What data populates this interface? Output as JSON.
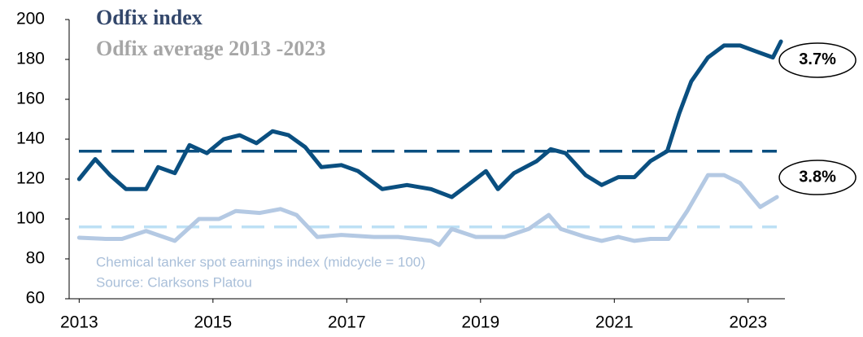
{
  "chart_data": {
    "type": "line",
    "title": "Odfix index",
    "subtitle": "Odfix average 2013 -2023",
    "notes": [
      "Chemical tanker spot earnings index (midcycle = 100)",
      "Source: Clarksons Platou"
    ],
    "xlim": [
      2012.85,
      2023.55
    ],
    "xticks": [
      2013,
      2015,
      2017,
      2019,
      2021,
      2023
    ],
    "ylim": [
      60,
      200
    ],
    "yticks": [
      60,
      80,
      100,
      120,
      140,
      160,
      180,
      200
    ],
    "grid": false,
    "series": [
      {
        "name": "Odfix index",
        "color": "#0a4f80",
        "x": [
          2013,
          2013.24,
          2013.46,
          2013.7,
          2014.0,
          2014.18,
          2014.43,
          2014.65,
          2014.91,
          2015.16,
          2015.4,
          2015.65,
          2015.89,
          2016.13,
          2016.38,
          2016.62,
          2016.92,
          2017.17,
          2017.53,
          2017.9,
          2018.26,
          2018.57,
          2018.81,
          2019.08,
          2019.26,
          2019.5,
          2019.84,
          2020.05,
          2020.27,
          2020.57,
          2020.81,
          2021.06,
          2021.3,
          2021.54,
          2021.79,
          2021.97,
          2022.15,
          2022.4,
          2022.64,
          2022.88,
          2023.12,
          2023.37,
          2023.49
        ],
        "values": [
          120,
          130,
          122,
          115,
          115,
          126,
          123,
          137,
          133,
          140,
          142,
          138,
          144,
          142,
          136,
          126,
          127,
          124,
          115,
          117,
          115,
          111,
          117,
          124,
          115,
          123,
          129,
          135,
          133,
          122,
          117,
          121,
          121,
          129,
          134,
          153,
          169,
          181,
          187,
          187,
          184,
          181,
          189
        ]
      },
      {
        "color": "#b4c9e3",
        "x": [
          2013,
          2013.4,
          2013.64,
          2014.0,
          2014.43,
          2014.79,
          2015.09,
          2015.34,
          2015.7,
          2016.01,
          2016.25,
          2016.56,
          2016.92,
          2017.41,
          2017.77,
          2018.26,
          2018.38,
          2018.57,
          2018.93,
          2019.36,
          2019.72,
          2020.02,
          2020.2,
          2020.57,
          2020.81,
          2021.06,
          2021.3,
          2021.54,
          2021.81,
          2022.09,
          2022.4,
          2022.64,
          2022.88,
          2023.18,
          2023.43
        ],
        "values": [
          90.6,
          90,
          90,
          94,
          89,
          100,
          100,
          104,
          103,
          105,
          102,
          91,
          92,
          91,
          91,
          89,
          87,
          95,
          91,
          91,
          95,
          102,
          95,
          91,
          89,
          91,
          89,
          90,
          90,
          104,
          122,
          122,
          118,
          106,
          111
        ]
      }
    ],
    "reference_lines": [
      {
        "value": 134,
        "color": "#0a4f80"
      },
      {
        "value": 96,
        "color": "#bde0f5"
      }
    ],
    "annotations": [
      {
        "text": "3.7%",
        "x": 2023.49,
        "y": 189
      },
      {
        "text": "3.8%",
        "x": 2023.49,
        "y": 111
      }
    ]
  }
}
